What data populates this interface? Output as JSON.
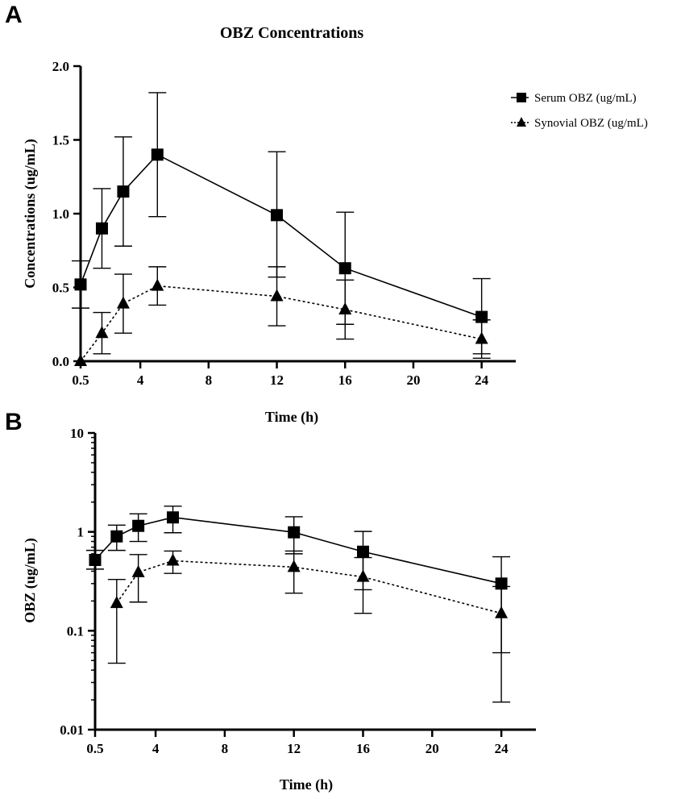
{
  "panels": {
    "a_label": "A",
    "b_label": "B"
  },
  "chart_data": [
    {
      "type": "line",
      "panel": "A",
      "title": "OBZ Concentrations",
      "xlabel": "Time (h)",
      "ylabel": "Concentrations (ug/mL)",
      "yscale": "linear",
      "xlim": [
        0.5,
        26
      ],
      "ylim": [
        0,
        2.0
      ],
      "xticks": [
        0.5,
        4,
        8,
        12,
        16,
        20,
        24
      ],
      "xtick_labels": [
        "0.5",
        "4",
        "8",
        "12",
        "16",
        "20",
        "24"
      ],
      "yticks": [
        0,
        0.5,
        1.0,
        1.5,
        2.0
      ],
      "ytick_labels": [
        "0.0",
        "0.5",
        "1.0",
        "1.5",
        "2.0"
      ],
      "legend": "top-right",
      "series": [
        {
          "name": "Serum OBZ (ug/mL)",
          "marker": "square",
          "line": "solid",
          "x": [
            0.5,
            1.75,
            3,
            5,
            12,
            16,
            24
          ],
          "values": [
            0.52,
            0.9,
            1.15,
            1.4,
            0.99,
            0.63,
            0.3
          ],
          "err_low": [
            0.36,
            0.63,
            0.78,
            0.98,
            0.57,
            0.25,
            0.05
          ],
          "err_high": [
            0.68,
            1.17,
            1.52,
            1.82,
            1.42,
            1.01,
            0.56
          ]
        },
        {
          "name": "Synovial OBZ (ug/mL)",
          "marker": "triangle",
          "line": "dotted",
          "x": [
            0.5,
            1.75,
            3,
            5,
            12,
            16,
            24
          ],
          "values": [
            0.0,
            0.19,
            0.39,
            0.51,
            0.44,
            0.35,
            0.15
          ],
          "err_low": [
            0.0,
            0.05,
            0.19,
            0.38,
            0.24,
            0.15,
            0.02
          ],
          "err_high": [
            0.0,
            0.33,
            0.59,
            0.64,
            0.64,
            0.55,
            0.28
          ]
        }
      ]
    },
    {
      "type": "line",
      "panel": "B",
      "title": "",
      "xlabel": "Time (h)",
      "ylabel": "OBZ (ug/mL)",
      "yscale": "log",
      "xlim": [
        0.5,
        26
      ],
      "ylim": [
        0.01,
        10
      ],
      "xticks": [
        0.5,
        4,
        8,
        12,
        16,
        20,
        24
      ],
      "xtick_labels": [
        "0.5",
        "4",
        "8",
        "12",
        "16",
        "20",
        "24"
      ],
      "yticks": [
        0.01,
        0.1,
        1,
        10
      ],
      "ytick_labels": [
        "0.01",
        "0.1",
        "1",
        "10"
      ],
      "series": [
        {
          "name": "Serum OBZ (ug/mL)",
          "marker": "square",
          "line": "solid",
          "x": [
            0.5,
            1.75,
            3,
            5,
            12,
            16,
            24
          ],
          "values": [
            0.52,
            0.9,
            1.15,
            1.4,
            0.99,
            0.63,
            0.3
          ],
          "err_low": [
            0.42,
            0.65,
            0.8,
            0.98,
            0.6,
            0.26,
            0.06
          ],
          "err_high": [
            0.65,
            1.17,
            1.52,
            1.82,
            1.42,
            1.01,
            0.56
          ]
        },
        {
          "name": "Synovial OBZ (ug/mL)",
          "marker": "triangle",
          "line": "dotted",
          "x": [
            1.75,
            3,
            5,
            12,
            16,
            24
          ],
          "values": [
            0.19,
            0.39,
            0.51,
            0.44,
            0.35,
            0.15
          ],
          "err_low": [
            0.047,
            0.195,
            0.38,
            0.24,
            0.15,
            0.019
          ],
          "err_high": [
            0.33,
            0.59,
            0.64,
            0.64,
            0.55,
            0.28
          ]
        }
      ]
    }
  ]
}
